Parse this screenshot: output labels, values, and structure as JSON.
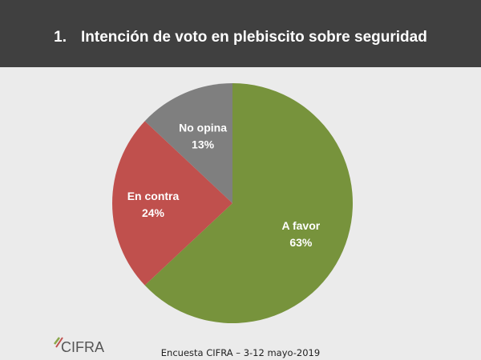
{
  "header": {
    "number": "1.",
    "title": "Intención de voto en plebiscito sobre seguridad"
  },
  "chart_data": {
    "type": "pie",
    "title": "Intención de voto en plebiscito sobre seguridad",
    "categories": [
      "A favor",
      "En contra",
      "No opina"
    ],
    "values": [
      63,
      24,
      13
    ],
    "value_labels": [
      "63%",
      "24%",
      "13%"
    ],
    "colors": [
      "#77933c",
      "#c0504d",
      "#7f7f7f"
    ],
    "start": "12 o'clock, clockwise",
    "legend": "none (labels inside slices)"
  },
  "footer": {
    "source": "Encuesta CIFRA – 3-12 mayo-2019",
    "logo_text": "CIFRA"
  }
}
